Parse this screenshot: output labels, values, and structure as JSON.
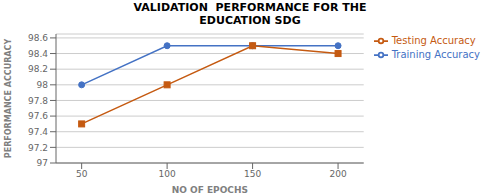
{
  "chart_data": {
    "type": "line",
    "title": "VALIDATION  PERFORMANCE FOR THE\nEDUCATION SDG",
    "x_label": "NO OF EPOCHS",
    "y_label": "PERFORMANCE ACCURACY",
    "x": [
      50,
      100,
      150,
      200
    ],
    "series": [
      {
        "name": "Training Accuracy",
        "color": "#4472C4",
        "marker": "circle",
        "values": [
          98.0,
          98.5,
          98.5,
          98.5
        ]
      },
      {
        "name": "Testing Accuracy",
        "color": "#C55A11",
        "marker": "square",
        "values": [
          97.5,
          98.0,
          98.5,
          98.4
        ]
      }
    ],
    "xlim": [
      35,
      215
    ],
    "xticks": [
      50,
      100,
      150,
      200
    ],
    "ylim": [
      97.0,
      98.65
    ],
    "yticks": [
      97.0,
      97.2,
      97.4,
      97.6,
      97.8,
      98.0,
      98.2,
      98.4,
      98.6
    ],
    "grid": true,
    "legend": "right"
  }
}
